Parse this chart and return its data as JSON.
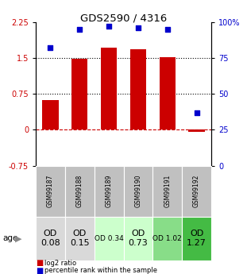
{
  "title": "GDS2590 / 4316",
  "samples": [
    "GSM99187",
    "GSM99188",
    "GSM99189",
    "GSM99190",
    "GSM99191",
    "GSM99192"
  ],
  "log2_ratio": [
    0.62,
    1.48,
    1.72,
    1.68,
    1.52,
    -0.05
  ],
  "percentile_rank": [
    82,
    95,
    97,
    96,
    95,
    37
  ],
  "ylim_left": [
    -0.75,
    2.25
  ],
  "ylim_right": [
    0,
    100
  ],
  "yticks_left": [
    -0.75,
    0,
    0.75,
    1.5,
    2.25
  ],
  "yticks_right": [
    0,
    25,
    50,
    75,
    100
  ],
  "bar_color": "#cc0000",
  "dot_color": "#0000cc",
  "age_labels": [
    "OD\n0.08",
    "OD\n0.15",
    "OD 0.34",
    "OD\n0.73",
    "OD 1.02",
    "OD\n1.27"
  ],
  "age_bg_colors": [
    "#d9d9d9",
    "#d9d9d9",
    "#ccffcc",
    "#ccffcc",
    "#88dd88",
    "#44bb44"
  ],
  "age_font_sizes": [
    8,
    8,
    6.5,
    8,
    6.5,
    8
  ],
  "sample_bg_color": "#c0c0c0",
  "legend_red": "log2 ratio",
  "legend_blue": "percentile rank within the sample"
}
